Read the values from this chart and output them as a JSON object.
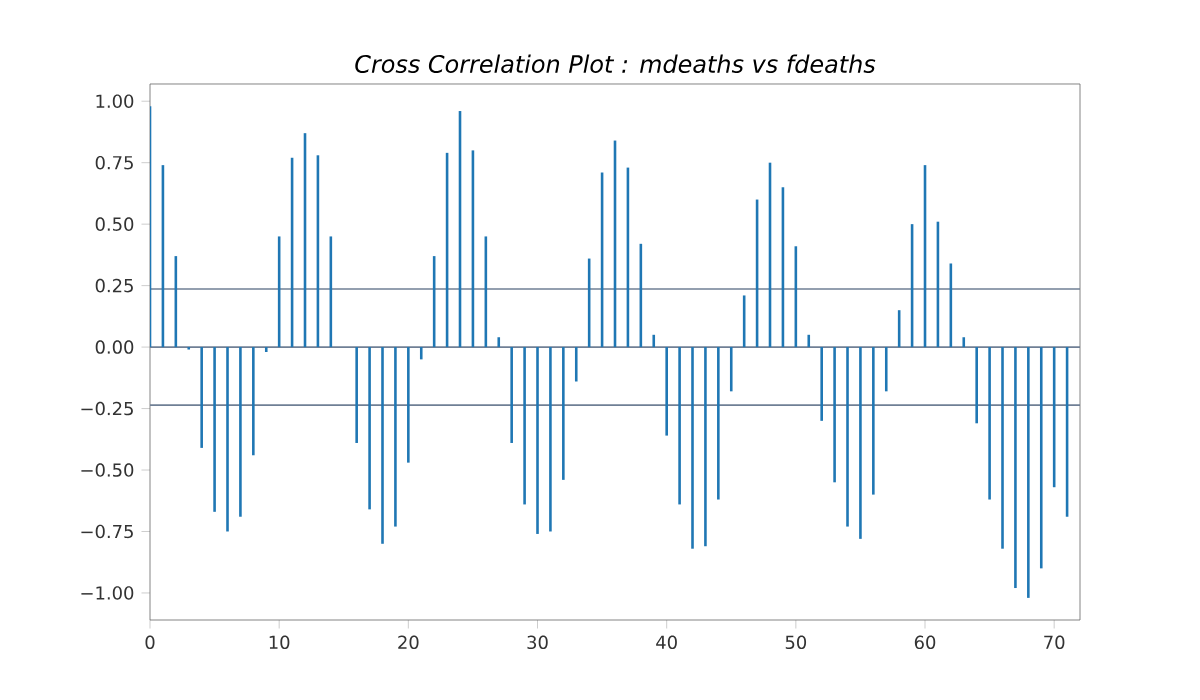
{
  "chart_data": {
    "type": "bar",
    "title": "Cross Correlation Plot : mdeaths vs fdeaths",
    "x": [
      0,
      1,
      2,
      3,
      4,
      5,
      6,
      7,
      8,
      9,
      10,
      11,
      12,
      13,
      14,
      15,
      16,
      17,
      18,
      19,
      20,
      21,
      22,
      23,
      24,
      25,
      26,
      27,
      28,
      29,
      30,
      31,
      32,
      33,
      34,
      35,
      36,
      37,
      38,
      39,
      40,
      41,
      42,
      43,
      44,
      45,
      46,
      47,
      48,
      49,
      50,
      51,
      52,
      53,
      54,
      55,
      56,
      57,
      58,
      59,
      60,
      61,
      62,
      63,
      64,
      65,
      66,
      67,
      68,
      69,
      70,
      71
    ],
    "values": [
      0.98,
      0.74,
      0.37,
      -0.01,
      -0.41,
      -0.67,
      -0.75,
      -0.69,
      -0.44,
      -0.02,
      0.45,
      0.77,
      0.87,
      0.78,
      0.45,
      0.0,
      -0.39,
      -0.66,
      -0.8,
      -0.73,
      -0.47,
      -0.05,
      0.37,
      0.79,
      0.96,
      0.8,
      0.45,
      0.04,
      -0.39,
      -0.64,
      -0.76,
      -0.75,
      -0.54,
      -0.14,
      0.36,
      0.71,
      0.84,
      0.73,
      0.42,
      0.05,
      -0.36,
      -0.64,
      -0.82,
      -0.81,
      -0.62,
      -0.18,
      0.21,
      0.6,
      0.75,
      0.65,
      0.41,
      0.05,
      -0.3,
      -0.55,
      -0.73,
      -0.78,
      -0.6,
      -0.18,
      0.15,
      0.5,
      0.74,
      0.51,
      0.34,
      0.04,
      -0.31,
      -0.62,
      -0.82,
      -0.98,
      -1.02,
      -0.9,
      -0.57,
      -0.69
    ],
    "color": "#1f77b4",
    "xlim": [
      0,
      72
    ],
    "ylim": [
      -1.11,
      1.07
    ],
    "xticks": [
      0,
      10,
      20,
      30,
      40,
      50,
      60,
      70
    ],
    "yticks": [
      {
        "value": -1,
        "label": "−1.00"
      },
      {
        "value": -0.75,
        "label": "−0.75"
      },
      {
        "value": -0.5,
        "label": "−0.50"
      },
      {
        "value": -0.25,
        "label": "−0.25"
      },
      {
        "value": 0,
        "label": "0.00"
      },
      {
        "value": 0.25,
        "label": "0.25"
      },
      {
        "value": 0.5,
        "label": "0.50"
      },
      {
        "value": 0.75,
        "label": "0.75"
      },
      {
        "value": 1,
        "label": "1.00"
      }
    ],
    "ref_lines": [
      {
        "axis": "y",
        "value": 0.236,
        "color": "#6f7f95"
      },
      {
        "axis": "y",
        "value": -0.236,
        "color": "#6f7f95"
      },
      {
        "axis": "y",
        "value": 0,
        "color": "#6f7f95"
      }
    ]
  }
}
